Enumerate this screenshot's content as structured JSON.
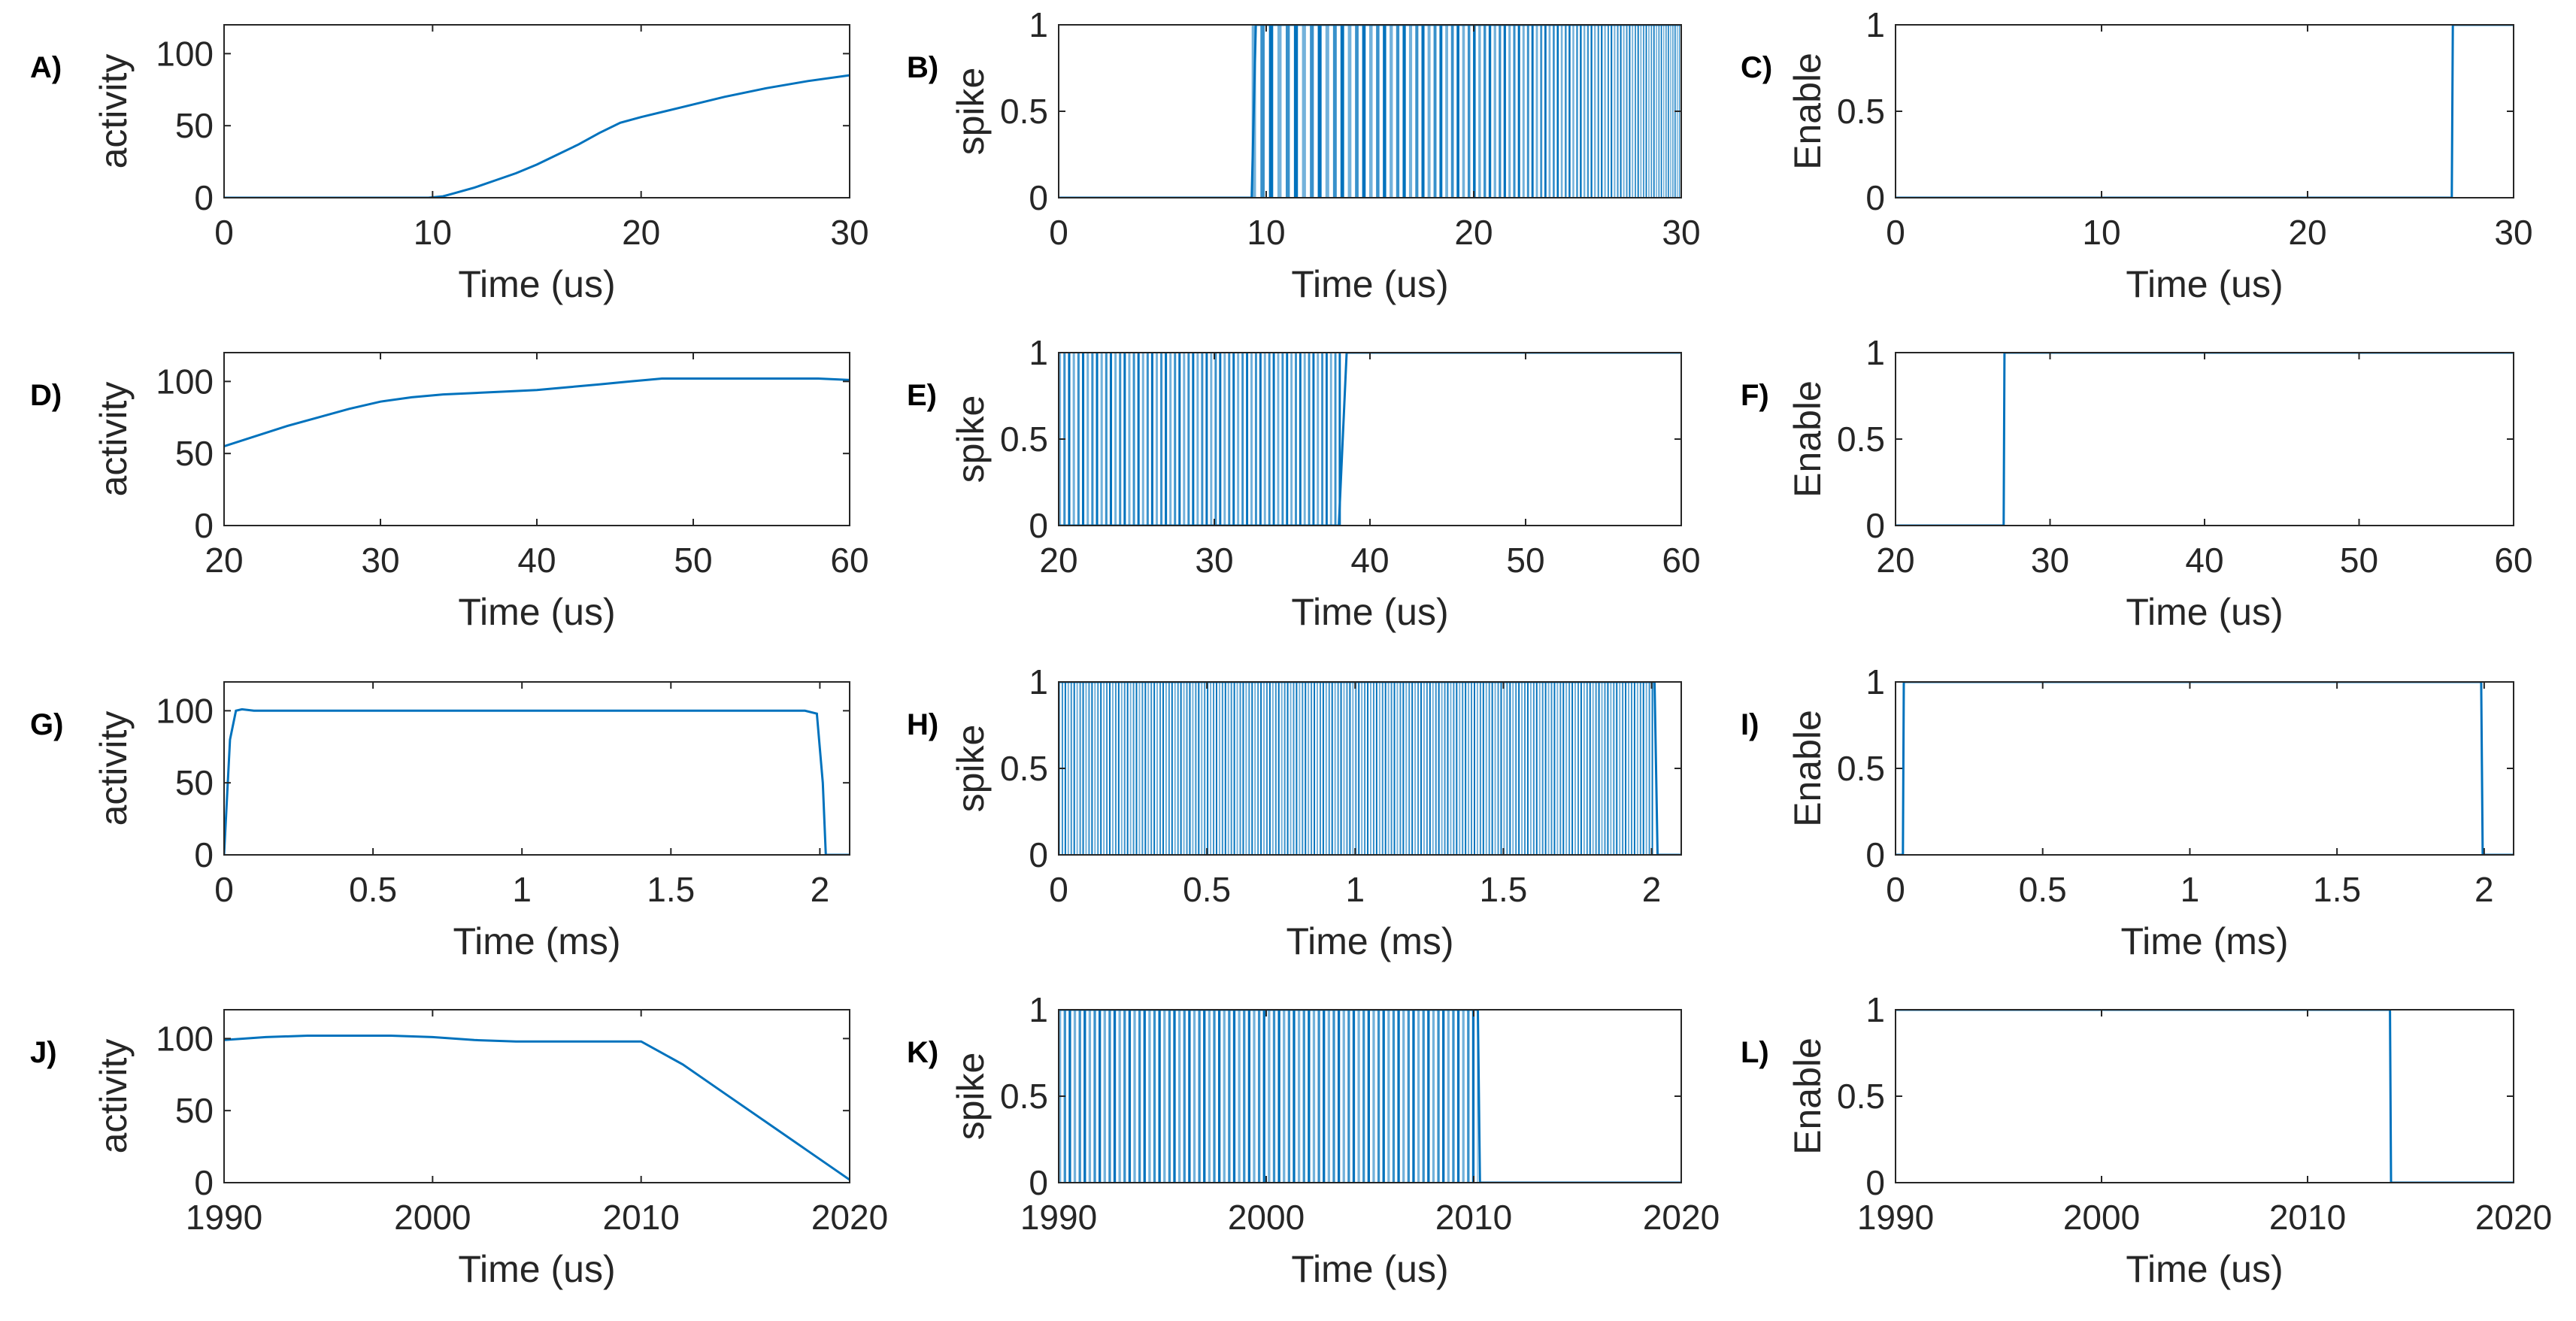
{
  "figure": {
    "background": "#ffffff",
    "line_color": "#0072bd",
    "axis_color": "#262626"
  },
  "chart_data": [
    {
      "id": "A",
      "panel_label": "A)",
      "type": "line",
      "ylabel": "activity",
      "xlabel": "Time (us)",
      "xlim": [
        0,
        30
      ],
      "ylim": [
        0,
        120
      ],
      "xticks": [
        0,
        10,
        20,
        30
      ],
      "yticks": [
        0,
        50,
        100
      ],
      "x": [
        0,
        2,
        4,
        6,
        8,
        9,
        9.8,
        10.5,
        11,
        12,
        13,
        14,
        15,
        16,
        17,
        18,
        19,
        20,
        22,
        24,
        26,
        28,
        30
      ],
      "y": [
        0,
        0,
        0,
        0,
        0,
        0,
        0,
        1,
        3,
        7,
        12,
        17,
        23,
        30,
        37,
        45,
        52,
        56,
        63,
        70,
        76,
        81,
        85
      ]
    },
    {
      "id": "B",
      "panel_label": "B)",
      "type": "spike",
      "ylabel": "spike",
      "xlabel": "Time (us)",
      "xlim": [
        0,
        30
      ],
      "ylim": [
        0,
        1
      ],
      "xticks": [
        0,
        10,
        20,
        30
      ],
      "yticks": [
        0,
        0.5,
        1
      ],
      "x": [
        0,
        9.3,
        9.5,
        30
      ],
      "y": [
        0,
        0,
        1,
        1
      ],
      "spike_start": 9.3,
      "spike_end": 30,
      "period_start": 0.42,
      "period_end": 0.1
    },
    {
      "id": "C",
      "panel_label": "C)",
      "type": "line",
      "ylabel": "Enable",
      "xlabel": "Time (us)",
      "xlim": [
        0,
        30
      ],
      "ylim": [
        0,
        1
      ],
      "xticks": [
        0,
        10,
        20,
        30
      ],
      "yticks": [
        0,
        0.5,
        1
      ],
      "x": [
        0,
        27,
        27.05,
        30
      ],
      "y": [
        0,
        0,
        1,
        1
      ]
    },
    {
      "id": "D",
      "panel_label": "D)",
      "type": "line",
      "ylabel": "activity",
      "xlabel": "Time (us)",
      "xlim": [
        20,
        60
      ],
      "ylim": [
        0,
        120
      ],
      "xticks": [
        20,
        30,
        40,
        50,
        60
      ],
      "yticks": [
        0,
        50,
        100
      ],
      "x": [
        20,
        22,
        24,
        26,
        28,
        30,
        32,
        34,
        36,
        38,
        40,
        42,
        44,
        46,
        48,
        50,
        52,
        54,
        56,
        58,
        60
      ],
      "y": [
        55,
        62,
        69,
        75,
        81,
        86,
        89,
        91,
        92,
        93,
        94,
        96,
        98,
        100,
        102,
        102,
        102,
        102,
        102,
        102,
        101
      ]
    },
    {
      "id": "E",
      "panel_label": "E)",
      "type": "spike",
      "ylabel": "spike",
      "xlabel": "Time (us)",
      "xlim": [
        20,
        60
      ],
      "ylim": [
        0,
        1
      ],
      "xticks": [
        20,
        30,
        40,
        50,
        60
      ],
      "yticks": [
        0,
        0.5,
        1
      ],
      "x": [
        20,
        38,
        38.5,
        60
      ],
      "y": [
        0,
        0,
        1,
        1
      ],
      "spike_start": 20,
      "spike_end": 38.2,
      "period_start": 0.3,
      "period_end": 0.28
    },
    {
      "id": "F",
      "panel_label": "F)",
      "type": "line",
      "ylabel": "Enable",
      "xlabel": "Time (us)",
      "xlim": [
        20,
        60
      ],
      "ylim": [
        0,
        1
      ],
      "xticks": [
        20,
        30,
        40,
        50,
        60
      ],
      "yticks": [
        0,
        0.5,
        1
      ],
      "x": [
        20,
        27,
        27.05,
        60
      ],
      "y": [
        0,
        0,
        1,
        1
      ]
    },
    {
      "id": "G",
      "panel_label": "G)",
      "type": "line",
      "ylabel": "activity",
      "xlabel": "Time (ms)",
      "xlim": [
        0,
        2.1
      ],
      "ylim": [
        0,
        120
      ],
      "xticks": [
        0,
        0.5,
        1,
        1.5,
        2
      ],
      "yticks": [
        0,
        50,
        100
      ],
      "x": [
        0,
        0.02,
        0.04,
        0.06,
        0.1,
        0.5,
        1,
        1.5,
        1.95,
        1.99,
        2.01,
        2.02,
        2.1
      ],
      "y": [
        0,
        80,
        100,
        101,
        100,
        100,
        100,
        100,
        100,
        98,
        50,
        0,
        0
      ]
    },
    {
      "id": "H",
      "panel_label": "H)",
      "type": "spike",
      "ylabel": "spike",
      "xlabel": "Time (ms)",
      "xlim": [
        0,
        2.1
      ],
      "ylim": [
        0,
        1
      ],
      "xticks": [
        0,
        0.5,
        1,
        1.5,
        2
      ],
      "yticks": [
        0,
        0.5,
        1
      ],
      "x": [
        0,
        2.01,
        2.02,
        2.1
      ],
      "y": [
        1,
        1,
        0,
        0
      ],
      "spike_start": 0,
      "spike_end": 2.01,
      "period_start": 0.01,
      "period_end": 0.01
    },
    {
      "id": "I",
      "panel_label": "I)",
      "type": "line",
      "ylabel": "Enable",
      "xlabel": "Time (ms)",
      "xlim": [
        0,
        2.1
      ],
      "ylim": [
        0,
        1
      ],
      "xticks": [
        0,
        0.5,
        1,
        1.5,
        2
      ],
      "yticks": [
        0,
        0.5,
        1
      ],
      "x": [
        0,
        0.025,
        0.028,
        1.99,
        1.995,
        2.1
      ],
      "y": [
        0,
        0,
        1,
        1,
        0,
        0
      ]
    },
    {
      "id": "J",
      "panel_label": "J)",
      "type": "line",
      "ylabel": "activity",
      "xlabel": "Time (us)",
      "xlim": [
        1990,
        2020
      ],
      "ylim": [
        0,
        120
      ],
      "xticks": [
        1990,
        2000,
        2010,
        2020
      ],
      "yticks": [
        0,
        50,
        100
      ],
      "x": [
        1990,
        1992,
        1994,
        1996,
        1998,
        2000,
        2002,
        2004,
        2006,
        2008,
        2010,
        2012,
        2014,
        2016,
        2018,
        2020
      ],
      "y": [
        99,
        101,
        102,
        102,
        102,
        101,
        99,
        98,
        98,
        98,
        98,
        82,
        62,
        42,
        22,
        2
      ]
    },
    {
      "id": "K",
      "panel_label": "K)",
      "type": "spike",
      "ylabel": "spike",
      "xlabel": "Time (us)",
      "xlim": [
        1990,
        2020
      ],
      "ylim": [
        0,
        1
      ],
      "xticks": [
        1990,
        2000,
        2010,
        2020
      ],
      "yticks": [
        0,
        0.5,
        1
      ],
      "x": [
        1990,
        2010.2,
        2010.3,
        2020
      ],
      "y": [
        1,
        1,
        0,
        0
      ],
      "spike_start": 1990,
      "spike_end": 2010.2,
      "period_start": 0.24,
      "period_end": 0.24
    },
    {
      "id": "L",
      "panel_label": "L)",
      "type": "line",
      "ylabel": "Enable",
      "xlabel": "Time (us)",
      "xlim": [
        1990,
        2020
      ],
      "ylim": [
        0,
        1
      ],
      "xticks": [
        1990,
        2000,
        2010,
        2020
      ],
      "yticks": [
        0,
        0.5,
        1
      ],
      "x": [
        1990,
        2014,
        2014.05,
        2020
      ],
      "y": [
        1,
        1,
        0,
        0
      ]
    }
  ]
}
